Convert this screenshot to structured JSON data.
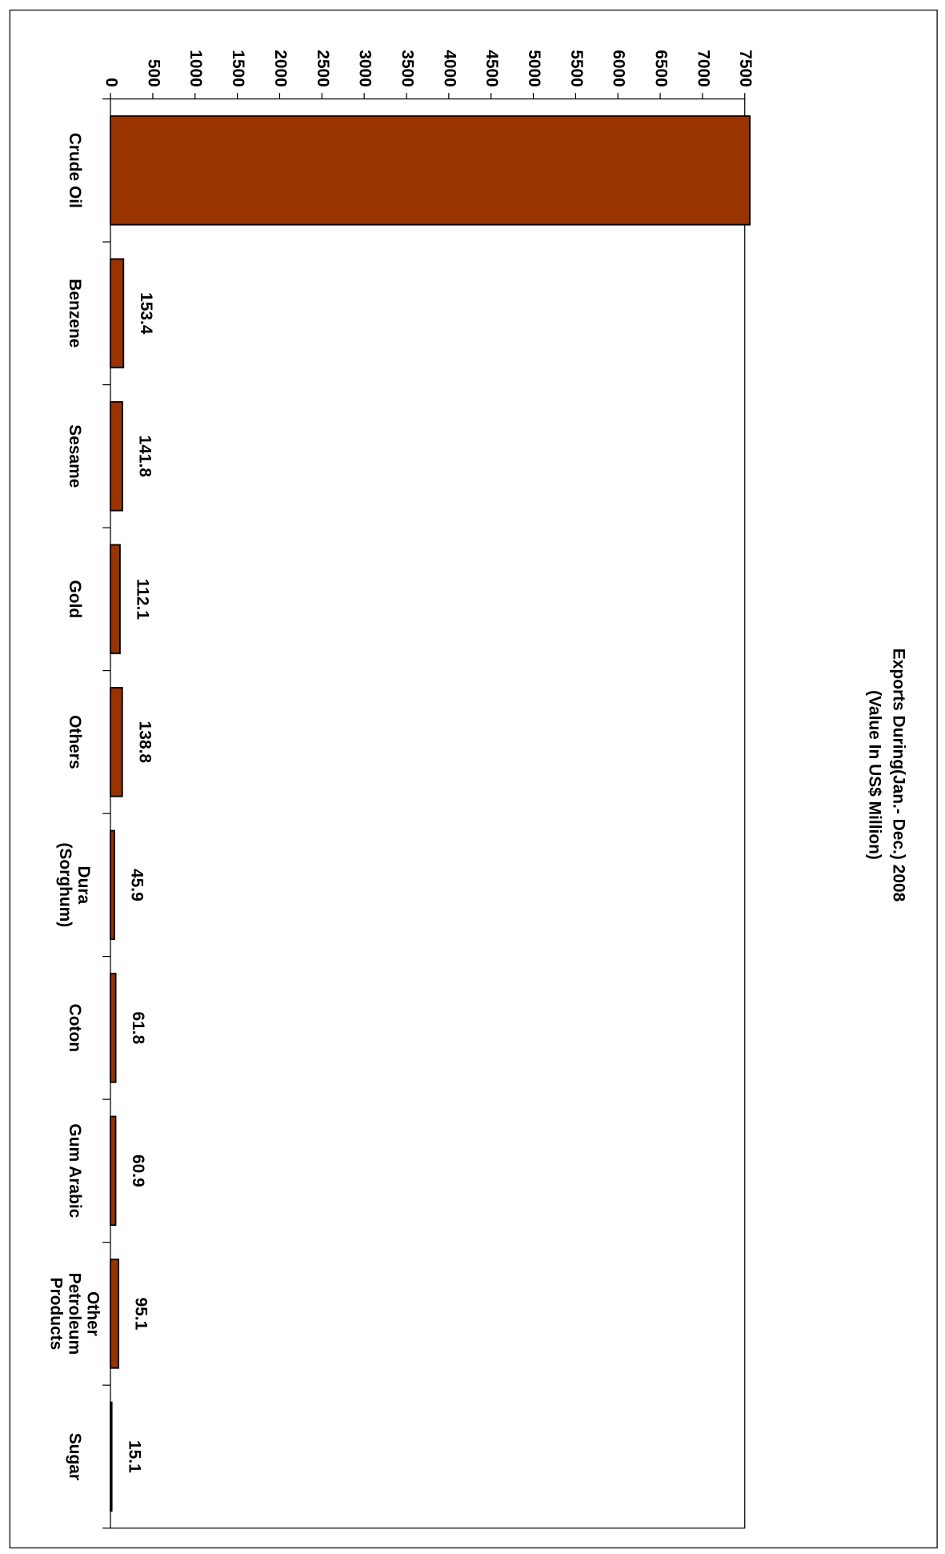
{
  "chart_data": {
    "type": "bar",
    "title": "Exports During(Jan.- Dec.) 2008",
    "subtitle": "(Value In US$ Million)",
    "categories": [
      "Crude Oil",
      "Benzene",
      "Sesame",
      "Gold",
      "Others",
      "Dura\n(Sorghum)",
      "Coton",
      "Gum Arabic",
      "Other\nPetroleum\nProducts",
      "Sugar"
    ],
    "values": [
      7560,
      153.4,
      141.8,
      112.1,
      138.8,
      45.9,
      61.8,
      60.9,
      95.1,
      15.1
    ],
    "value_labels": [
      null,
      "153.4",
      "141.8",
      "112.1",
      "138.8",
      "45.9",
      "61.8",
      "60.9",
      "95.1",
      "15.1"
    ],
    "color": "#993300",
    "ylim": [
      0,
      7500
    ],
    "yticks": [
      0,
      500,
      1000,
      1500,
      2000,
      2500,
      3000,
      3500,
      4000,
      4500,
      5000,
      5500,
      6000,
      6500,
      7000,
      7500
    ]
  }
}
